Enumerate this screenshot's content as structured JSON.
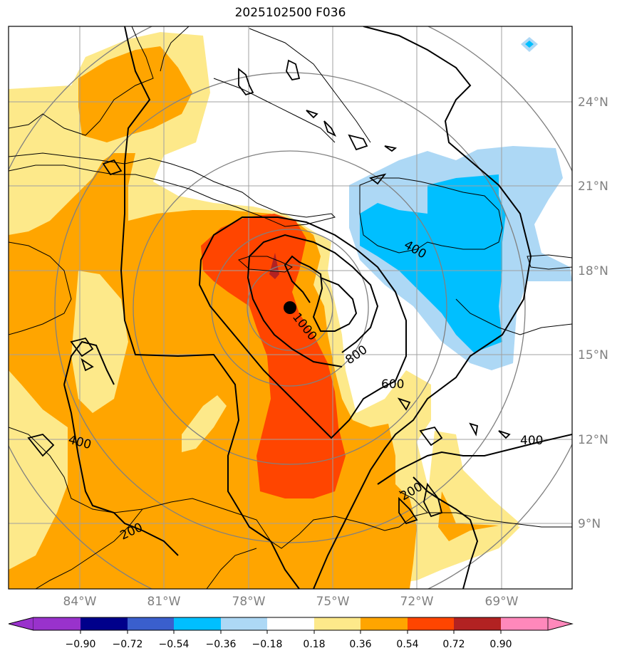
{
  "title": "2025102500 F036",
  "latitude_labels": [
    "24°N",
    "21°N",
    "18°N",
    "15°N",
    "12°N",
    "9°N"
  ],
  "longitude_labels": [
    "84°W",
    "81°W",
    "78°W",
    "75°W",
    "72°W",
    "69°W"
  ],
  "contour_labels": [
    "400",
    "1000",
    "800",
    "600",
    "400",
    "400",
    "200",
    "200"
  ],
  "colorbar": {
    "tick_labels": [
      "−0.90",
      "−0.72",
      "−0.54",
      "−0.36",
      "−0.18",
      "0.18",
      "0.36",
      "0.54",
      "0.72",
      "0.90"
    ],
    "colors": [
      "#9932cc",
      "#00008b",
      "#3a5fcd",
      "#00bfff",
      "#add8f5",
      "#ffffff",
      "#fde98a",
      "#ffa500",
      "#ff4500",
      "#b22222",
      "#ff88bb"
    ]
  },
  "colors": {
    "fill_light_yellow": "#fde98a",
    "fill_orange": "#ffa500",
    "fill_red_orange": "#ff4500",
    "fill_dark_red": "#b22222",
    "fill_light_blue": "#add8f5",
    "fill_blue": "#00bfff",
    "grid": "#a0a0a0",
    "range_rings": "#808080"
  },
  "markers": [
    {
      "name": "center-marker",
      "color": "#000000"
    }
  ]
}
